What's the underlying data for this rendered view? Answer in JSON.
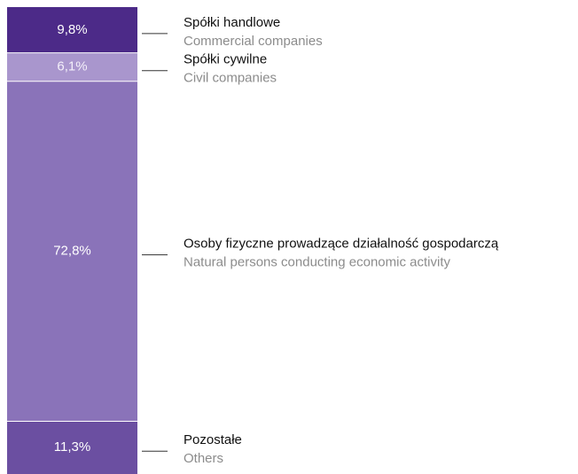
{
  "chart_data": {
    "type": "stacked_bar",
    "ylim": [
      0,
      100
    ],
    "series": [
      {
        "name": "Spółki handlowe",
        "subtitle": "Commercial companies",
        "color": "#4c2a88",
        "values": [
          9.8
        ],
        "value_labels": [
          "9,8%"
        ]
      },
      {
        "name": "Spółki cywilne",
        "subtitle": "Civil companies",
        "color": "#a996cd",
        "values": [
          6.1
        ],
        "value_labels": [
          "6,1%"
        ]
      },
      {
        "name": "Osoby fizyczne prowadzące działalność gospodarczą",
        "subtitle": "Natural persons conducting economic activity",
        "color": "#8a73b9",
        "values": [
          72.8
        ],
        "value_labels": [
          "72,8%"
        ]
      },
      {
        "name": "Pozostałe",
        "subtitle": "Others",
        "color": "#6b4fa1",
        "values": [
          11.3
        ],
        "value_labels": [
          "11,3%"
        ]
      }
    ]
  }
}
